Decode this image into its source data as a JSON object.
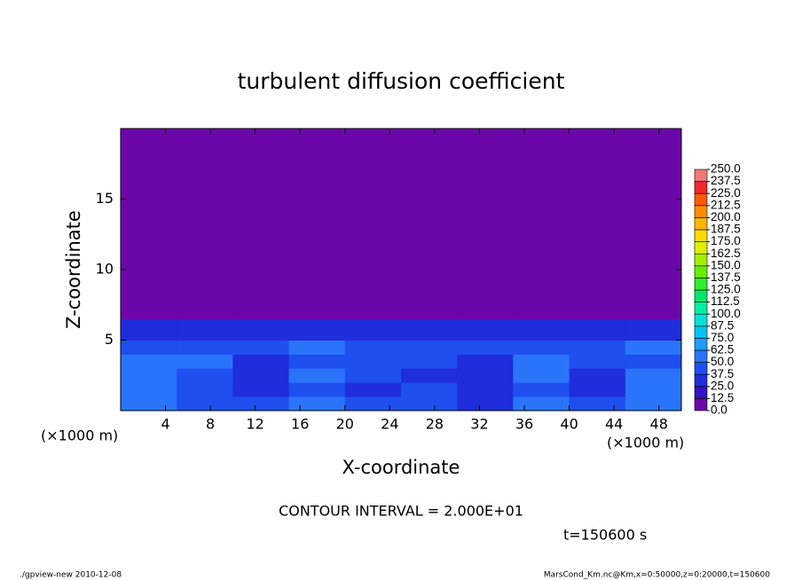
{
  "chart_data": {
    "type": "heatmap",
    "title": "turbulent diffusion coefficient",
    "x_label": "X-coordinate",
    "y_label": "Z-coordinate",
    "x_unit_labels": [
      "(×1000 m)",
      "(×1000 m)"
    ],
    "xlim": [
      0,
      50
    ],
    "ylim": [
      0,
      20
    ],
    "xticks": [
      4,
      8,
      12,
      16,
      20,
      24,
      28,
      32,
      36,
      40,
      44,
      48
    ],
    "yticks": [
      5,
      10,
      15
    ],
    "x_edges": [
      0,
      5,
      10,
      15,
      20,
      25,
      30,
      35,
      40,
      45,
      50
    ],
    "z_edges": [
      0,
      1,
      2,
      3,
      4,
      5,
      6.5,
      20
    ],
    "values": [
      [
        55,
        45,
        40,
        50,
        45,
        40,
        35,
        50,
        40,
        55
      ],
      [
        50,
        40,
        30,
        45,
        35,
        40,
        30,
        45,
        30,
        50
      ],
      [
        55,
        45,
        30,
        50,
        40,
        35,
        30,
        55,
        35,
        50
      ],
      [
        50,
        50,
        35,
        45,
        40,
        40,
        35,
        50,
        40,
        45
      ],
      [
        45,
        45,
        40,
        50,
        45,
        45,
        40,
        45,
        45,
        50
      ],
      [
        35,
        30,
        30,
        35,
        30,
        30,
        30,
        30,
        30,
        35
      ],
      [
        5,
        5,
        5,
        5,
        5,
        5,
        5,
        5,
        5,
        5
      ]
    ],
    "levels": [
      {
        "value": 0,
        "label": "0.0"
      },
      {
        "value": 12.5,
        "label": "12.5"
      },
      {
        "value": 25,
        "label": "25.0"
      },
      {
        "value": 37.5,
        "label": "37.5"
      },
      {
        "value": 50,
        "label": "50.0"
      },
      {
        "value": 62.5,
        "label": "62.5"
      },
      {
        "value": 75,
        "label": "75.0"
      },
      {
        "value": 87.5,
        "label": "87.5"
      },
      {
        "value": 100,
        "label": "100.0"
      },
      {
        "value": 112.5,
        "label": "112.5"
      },
      {
        "value": 125,
        "label": "125.0"
      },
      {
        "value": 137.5,
        "label": "137.5"
      },
      {
        "value": 150,
        "label": "150.0"
      },
      {
        "value": 162.5,
        "label": "162.5"
      },
      {
        "value": 175,
        "label": "175.0"
      },
      {
        "value": 187.5,
        "label": "187.5"
      },
      {
        "value": 200,
        "label": "200.0"
      },
      {
        "value": 212.5,
        "label": "212.5"
      },
      {
        "value": 225,
        "label": "225.0"
      },
      {
        "value": 237.5,
        "label": "237.5"
      },
      {
        "value": 250,
        "label": "250.0"
      }
    ],
    "colors": [
      "#6b06a8",
      "#3212c4",
      "#1f2ddc",
      "#1f4fee",
      "#2a74fa",
      "#1e9cff",
      "#00c3f2",
      "#00e2d6",
      "#00efa6",
      "#00e66a",
      "#2cf02c",
      "#66f000",
      "#a2f000",
      "#dcf000",
      "#ffdc00",
      "#ffb400",
      "#ff8c00",
      "#ff5a00",
      "#f02828",
      "#f07878"
    ],
    "annotations": [
      "CONTOUR INTERVAL = 2.000E+01",
      "t=150600 s"
    ],
    "footer_left": "./gpview-new  2010-12-08",
    "footer_right": "MarsCond_Km.nc@Km,x=0:50000,z=0:20000,t=150600"
  }
}
